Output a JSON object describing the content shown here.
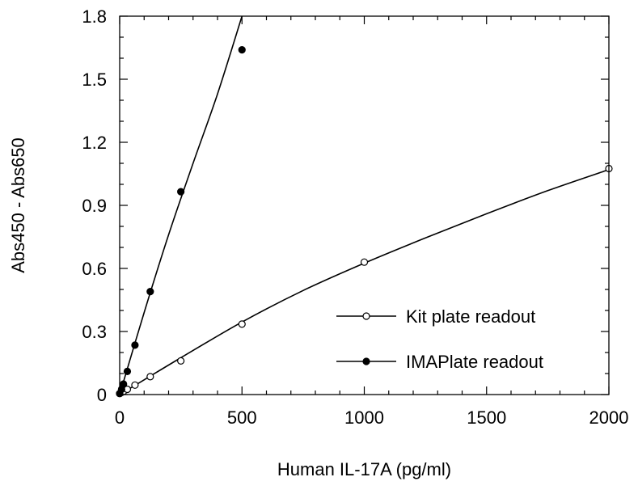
{
  "chart_data": {
    "type": "scatter",
    "xlabel": "Human IL-17A (pg/ml)",
    "ylabel": "Abs450 - Abs650",
    "xlim": [
      0,
      2000
    ],
    "ylim": [
      0,
      1.8
    ],
    "x_ticks": [
      0,
      500,
      1000,
      1500,
      2000
    ],
    "y_ticks": [
      0,
      0.3,
      0.6,
      0.9,
      1.2,
      1.5,
      1.8
    ],
    "x_tick_labels": [
      "0",
      "500",
      "1000",
      "1500",
      "2000"
    ],
    "y_tick_labels": [
      "0",
      "0.3",
      "0.6",
      "0.9",
      "1.2",
      "1.5",
      "1.8"
    ],
    "grid": false,
    "legend_position": "bottom-right",
    "series": [
      {
        "name": "Kit plate readout",
        "marker": "open-circle",
        "color": "#000000",
        "x": [
          0,
          7.8,
          15.6,
          31.3,
          62.5,
          125,
          250,
          500,
          1000,
          2000
        ],
        "y": [
          0.005,
          0.01,
          0.015,
          0.025,
          0.045,
          0.085,
          0.16,
          0.335,
          0.63,
          1.075
        ],
        "fit_curve": {
          "x": [
            0,
            100,
            250,
            500,
            750,
            1000,
            1250,
            1500,
            1750,
            2000
          ],
          "y": [
            0.0,
            0.07,
            0.175,
            0.345,
            0.495,
            0.625,
            0.745,
            0.86,
            0.97,
            1.07
          ]
        }
      },
      {
        "name": "IMAPlate readout",
        "marker": "filled-circle",
        "color": "#000000",
        "x": [
          0,
          7.8,
          15.6,
          31.3,
          62.5,
          125,
          250,
          500
        ],
        "y": [
          0.005,
          0.025,
          0.05,
          0.11,
          0.235,
          0.49,
          0.965,
          1.64
        ],
        "fit_curve": {
          "x": [
            0,
            100,
            200,
            300,
            400,
            500
          ],
          "y": [
            0.0,
            0.39,
            0.76,
            1.1,
            1.43,
            1.8
          ]
        }
      }
    ]
  }
}
